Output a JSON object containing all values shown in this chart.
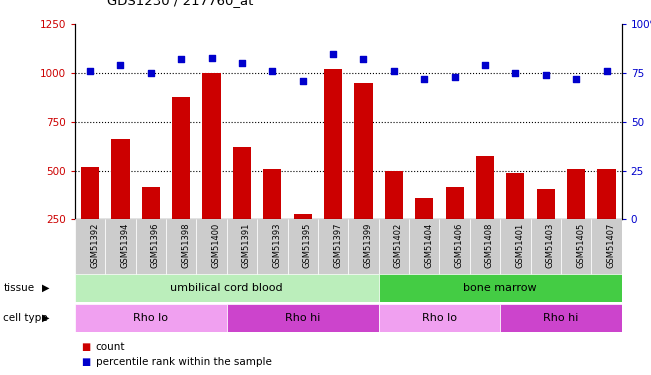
{
  "title": "GDS1230 / 217760_at",
  "samples": [
    "GSM51392",
    "GSM51394",
    "GSM51396",
    "GSM51398",
    "GSM51400",
    "GSM51391",
    "GSM51393",
    "GSM51395",
    "GSM51397",
    "GSM51399",
    "GSM51402",
    "GSM51404",
    "GSM51406",
    "GSM51408",
    "GSM51401",
    "GSM51403",
    "GSM51405",
    "GSM51407"
  ],
  "counts": [
    520,
    660,
    415,
    880,
    1000,
    620,
    510,
    280,
    1020,
    950,
    500,
    360,
    415,
    575,
    490,
    405,
    510,
    510
  ],
  "percentiles": [
    76,
    79,
    75,
    82,
    83,
    80,
    76,
    71,
    85,
    82,
    76,
    72,
    73,
    79,
    75,
    74,
    72,
    76
  ],
  "ylim_left": [
    250,
    1250
  ],
  "ylim_right": [
    0,
    100
  ],
  "yticks_left": [
    250,
    500,
    750,
    1000,
    1250
  ],
  "yticks_right": [
    0,
    25,
    50,
    75,
    100
  ],
  "bar_color": "#cc0000",
  "dot_color": "#0000cc",
  "tissue_groups": [
    {
      "label": "umbilical cord blood",
      "start": 0,
      "end": 9,
      "color": "#bbeebb"
    },
    {
      "label": "bone marrow",
      "start": 10,
      "end": 17,
      "color": "#44cc44"
    }
  ],
  "celltype_groups": [
    {
      "label": "Rho lo",
      "start": 0,
      "end": 4,
      "color": "#f0a0f0"
    },
    {
      "label": "Rho hi",
      "start": 5,
      "end": 9,
      "color": "#cc44cc"
    },
    {
      "label": "Rho lo",
      "start": 10,
      "end": 13,
      "color": "#f0a0f0"
    },
    {
      "label": "Rho hi",
      "start": 14,
      "end": 17,
      "color": "#cc44cc"
    }
  ],
  "background_color": "#ffffff",
  "grid_color": "#000000",
  "xtick_bg": "#cccccc"
}
